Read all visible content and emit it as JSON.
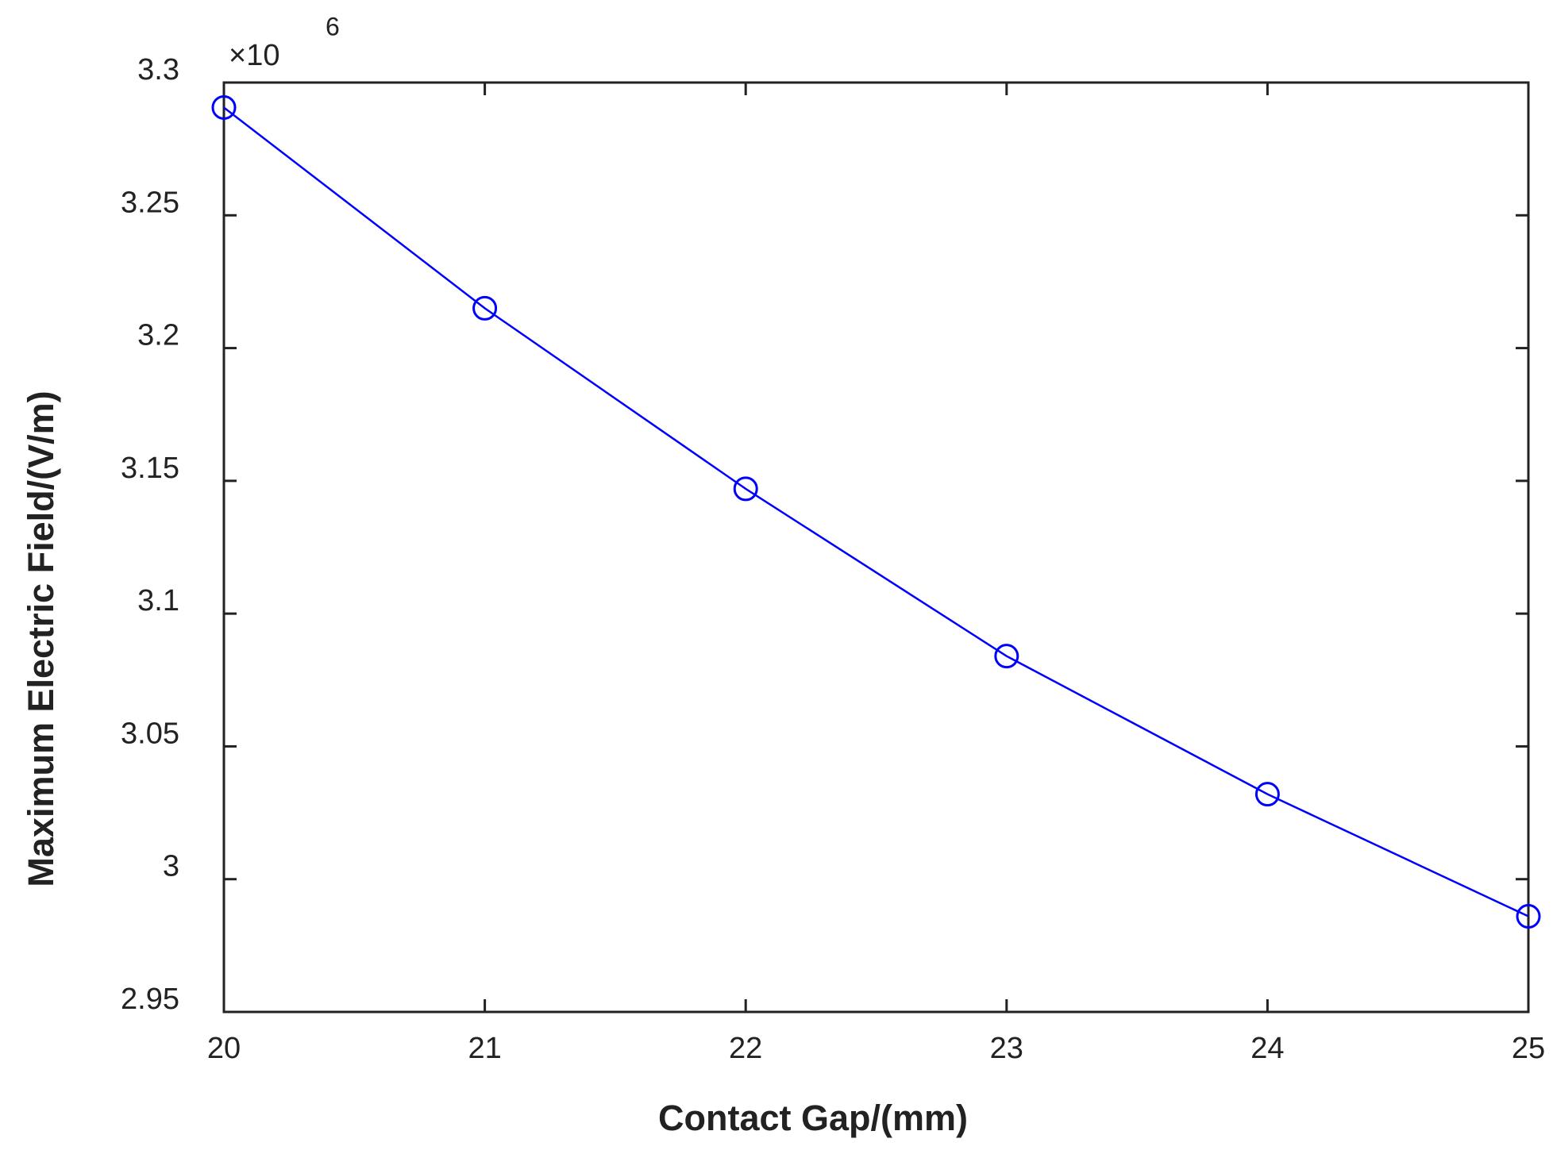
{
  "chart_data": {
    "type": "line",
    "x_label": "Contact Gap/(mm)",
    "y_label": "Maximum Electric Field/(V/m)",
    "y_multiplier": "×10",
    "y_exponent": "6",
    "x": [
      20,
      21,
      22,
      23,
      24,
      25
    ],
    "series": [
      {
        "color": "#0000ff",
        "marker": "circle",
        "values": [
          3.2906,
          3.215,
          3.147,
          3.084,
          3.032,
          2.986
        ]
      }
    ],
    "xlim": [
      20,
      25
    ],
    "xticks": [
      20,
      21,
      22,
      23,
      24,
      25
    ],
    "ylim": [
      2.95,
      3.3
    ],
    "yticks": [
      2.95,
      3,
      3.05,
      3.1,
      3.15,
      3.2,
      3.25,
      3.3
    ],
    "grid": false
  }
}
